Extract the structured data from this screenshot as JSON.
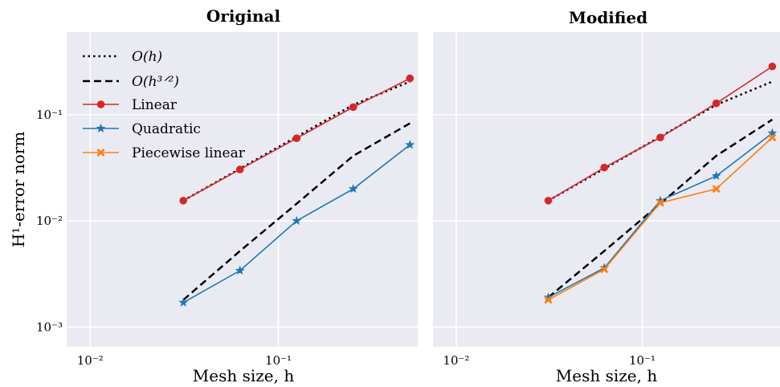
{
  "ylabel": "H¹-error norm",
  "legend": {
    "oh": "O(h)",
    "oh32": "O(h³ᐟ²)",
    "linear": "Linear",
    "quadratic": "Quadratic",
    "piecewise": "Piecewise linear"
  },
  "colors": {
    "background": "#eaeaf2",
    "grid": "#ffffff",
    "linear": "#d62728",
    "quadratic": "#1f77b4",
    "piecewise": "#ff7f0e",
    "reference": "#000000"
  },
  "chart_data": [
    {
      "type": "line",
      "title": "Original",
      "xlabel": "Mesh size, h",
      "ylabel": "H¹-error norm",
      "xscale": "log",
      "yscale": "log",
      "xlim": [
        0.0075,
        0.55
      ],
      "ylim": [
        0.00065,
        0.6
      ],
      "xticks": [
        0.01,
        0.1
      ],
      "xtick_labels": [
        "10⁻²",
        "10⁻¹"
      ],
      "yticks": [
        0.001,
        0.01,
        0.1
      ],
      "ytick_labels": [
        "10⁻³",
        "10⁻²",
        "10⁻¹"
      ],
      "grid": true,
      "legend_position": "top-left",
      "x": [
        0.03125,
        0.0625,
        0.125,
        0.25,
        0.5
      ],
      "series": [
        {
          "name": "O(h)",
          "style": "dotted",
          "values": [
            0.0155,
            0.031,
            0.062,
            0.124,
            0.205
          ]
        },
        {
          "name": "O(h³ᐟ²)",
          "style": "dashed",
          "values": [
            0.0018,
            0.0052,
            0.0145,
            0.041,
            0.083
          ]
        },
        {
          "name": "Linear",
          "style": "solid",
          "marker": "circle",
          "values": [
            0.0155,
            0.0305,
            0.06,
            0.118,
            0.22
          ]
        },
        {
          "name": "Quadratic",
          "style": "solid",
          "marker": "star",
          "values": [
            0.0017,
            0.0034,
            0.01,
            0.02,
            0.052
          ]
        }
      ]
    },
    {
      "type": "line",
      "title": "Modified",
      "xlabel": "Mesh size, h",
      "ylabel": "",
      "xscale": "log",
      "yscale": "log",
      "xlim": [
        0.0075,
        0.55
      ],
      "ylim": [
        0.00065,
        0.6
      ],
      "xticks": [
        0.01,
        0.1
      ],
      "xtick_labels": [
        "10⁻²",
        "10⁻¹"
      ],
      "yticks": [
        0.001,
        0.01,
        0.1
      ],
      "ytick_labels": [],
      "grid": true,
      "legend_position": "none",
      "x": [
        0.03125,
        0.0625,
        0.125,
        0.25,
        0.5
      ],
      "series": [
        {
          "name": "O(h)",
          "style": "dotted",
          "values": [
            0.0155,
            0.031,
            0.062,
            0.124,
            0.205
          ]
        },
        {
          "name": "O(h³ᐟ²)",
          "style": "dashed",
          "values": [
            0.0019,
            0.0052,
            0.0145,
            0.041,
            0.09
          ]
        },
        {
          "name": "Linear",
          "style": "solid",
          "marker": "circle",
          "values": [
            0.0155,
            0.0318,
            0.061,
            0.128,
            0.285
          ]
        },
        {
          "name": "Quadratic",
          "style": "solid",
          "marker": "star",
          "values": [
            0.0019,
            0.0036,
            0.0155,
            0.0265,
            0.067
          ]
        },
        {
          "name": "Piecewise linear",
          "style": "solid",
          "marker": "x",
          "values": [
            0.0018,
            0.0035,
            0.0148,
            0.02,
            0.061
          ]
        }
      ]
    }
  ]
}
